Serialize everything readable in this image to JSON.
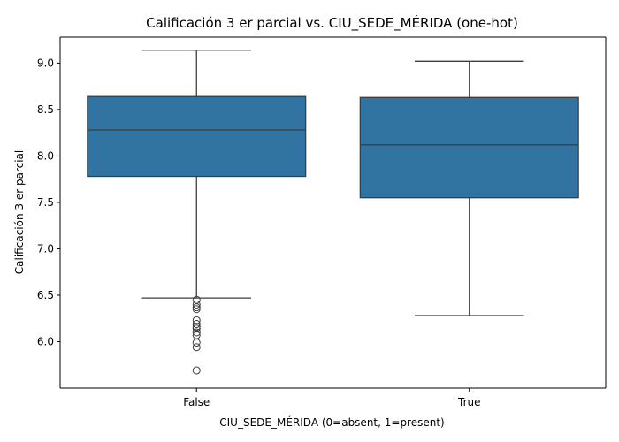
{
  "chart_data": {
    "type": "boxplot",
    "title": "Calificación 3 er parcial vs. CIU_SEDE_MÉRIDA (one-hot)",
    "xlabel": "CIU_SEDE_MÉRIDA (0=absent, 1=present)",
    "ylabel": "Calificación 3 er parcial",
    "ylim": [
      5.5,
      9.28
    ],
    "yticks": [
      6.0,
      6.5,
      7.0,
      7.5,
      8.0,
      8.5,
      9.0
    ],
    "ytick_labels": [
      "6.0",
      "6.5",
      "7.0",
      "7.5",
      "8.0",
      "8.5",
      "9.0"
    ],
    "categories": [
      "False",
      "True"
    ],
    "box_color": "#3274a1",
    "line_color": "#3d3d3d",
    "grid": false,
    "legend": false,
    "boxes": [
      {
        "category": "False",
        "whisker_low": 6.47,
        "q1": 7.78,
        "median": 8.28,
        "q3": 8.64,
        "whisker_high": 9.14,
        "outliers": [
          6.45,
          6.4,
          6.37,
          6.35,
          6.23,
          6.19,
          6.16,
          6.14,
          6.1,
          6.07,
          5.99,
          5.94,
          5.69
        ]
      },
      {
        "category": "True",
        "whisker_low": 6.28,
        "q1": 7.55,
        "median": 8.12,
        "q3": 8.63,
        "whisker_high": 9.02,
        "outliers": []
      }
    ]
  }
}
